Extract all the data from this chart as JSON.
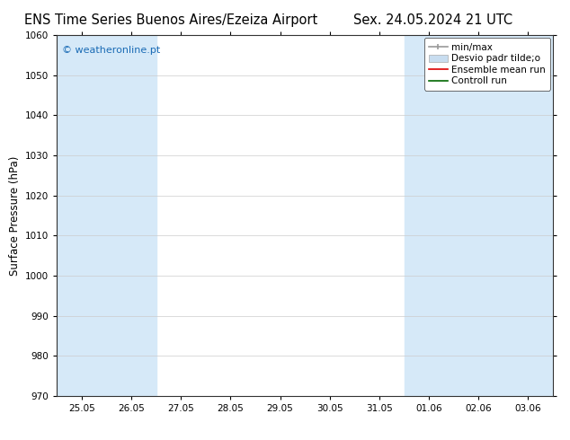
{
  "title_left": "ENS Time Series Buenos Aires/Ezeiza Airport",
  "title_right": "Sex. 24.05.2024 21 UTC",
  "ylabel": "Surface Pressure (hPa)",
  "ylim": [
    970,
    1060
  ],
  "yticks": [
    970,
    980,
    990,
    1000,
    1010,
    1020,
    1030,
    1040,
    1050,
    1060
  ],
  "xtick_labels": [
    "25.05",
    "26.05",
    "27.05",
    "28.05",
    "29.05",
    "30.05",
    "31.05",
    "01.06",
    "02.06",
    "03.06"
  ],
  "watermark": "© weatheronline.pt",
  "watermark_color": "#1a6bb5",
  "background_color": "#ffffff",
  "plot_bg_color": "#ffffff",
  "shaded_color": "#d6e9f8",
  "legend_items": [
    {
      "label": "min/max",
      "color": "#999999"
    },
    {
      "label": "Desvio padr tilde;o",
      "color": "#c8ddf0"
    },
    {
      "label": "Ensemble mean run",
      "color": "#dd0000"
    },
    {
      "label": "Controll run",
      "color": "#006600"
    }
  ],
  "title_fontsize": 10.5,
  "tick_fontsize": 7.5,
  "axis_label_fontsize": 8.5,
  "legend_fontsize": 7.5
}
